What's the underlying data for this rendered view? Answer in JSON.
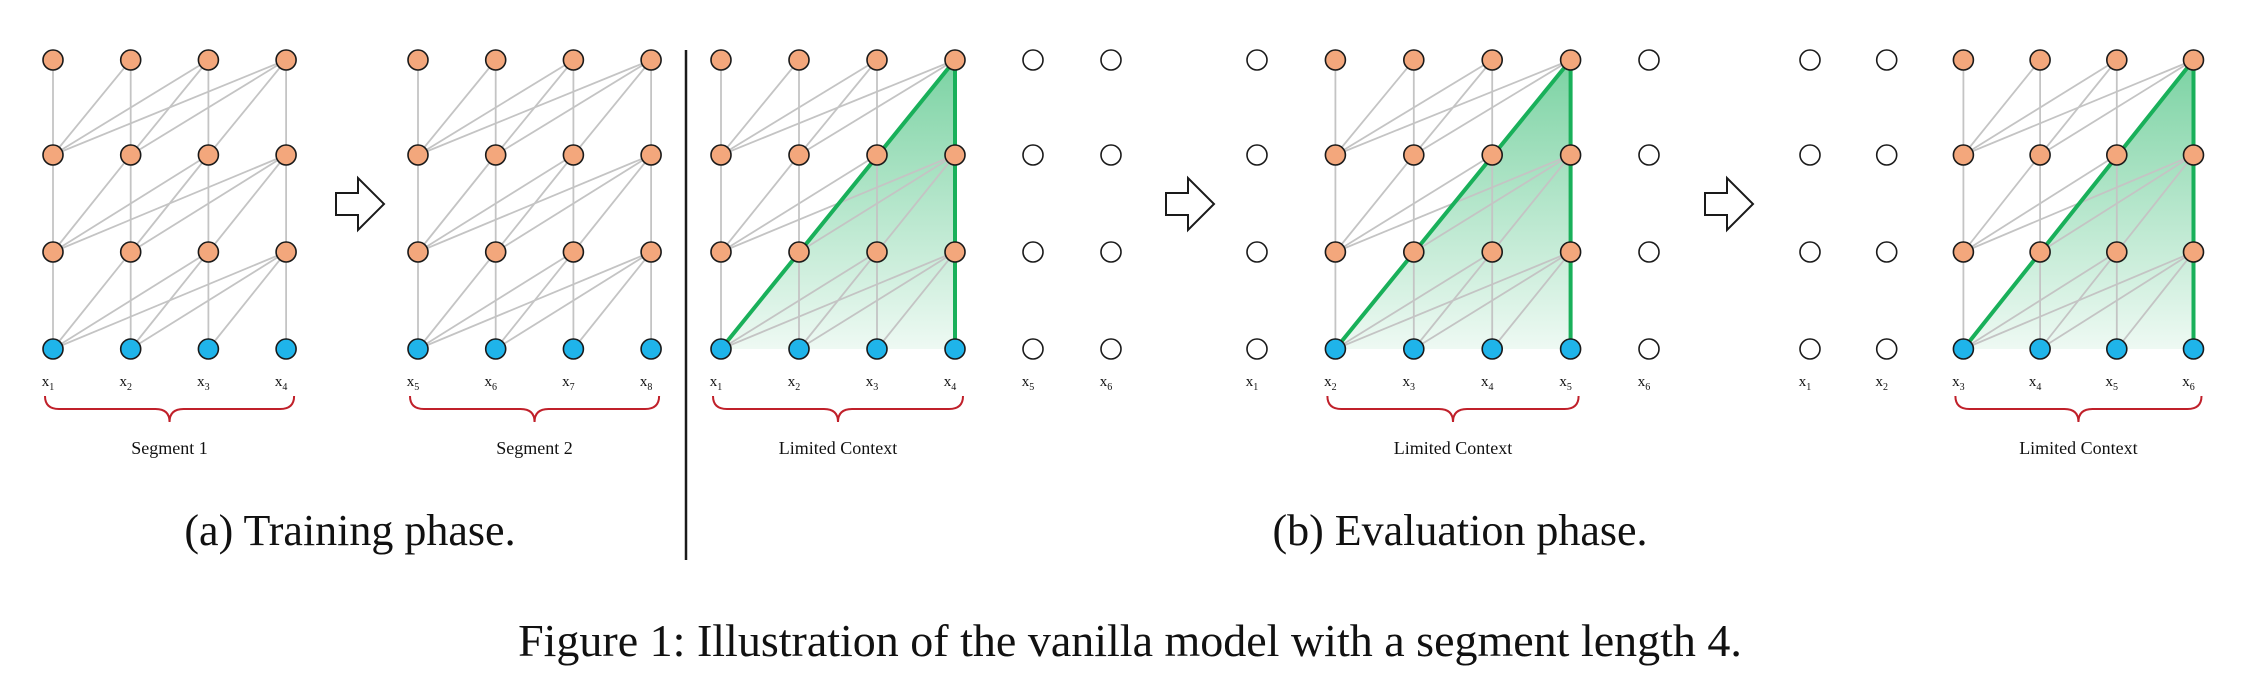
{
  "colors": {
    "hidden_node": "#f3a77c",
    "input_node": "#1fb4ea",
    "empty_node": "#ffffff",
    "node_stroke": "#1a1a1a",
    "edge": "#c4c4c4",
    "context_edge": "#19b05a",
    "context_fill": "#2ab76a",
    "brace": "#c0202a",
    "arrow_stroke": "#1a1a1a"
  },
  "panels": [
    {
      "id": "train-seg1",
      "tokens": [
        [
          "x",
          "1"
        ],
        [
          "x",
          "2"
        ],
        [
          "x",
          "3"
        ],
        [
          "x",
          "4"
        ]
      ],
      "active": [
        0,
        1,
        2,
        3
      ],
      "context": null,
      "brace_label": "Segment 1"
    },
    {
      "id": "train-seg2",
      "tokens": [
        [
          "x",
          "5"
        ],
        [
          "x",
          "6"
        ],
        [
          "x",
          "7"
        ],
        [
          "x",
          "8"
        ]
      ],
      "active": [
        0,
        1,
        2,
        3
      ],
      "context": null,
      "brace_label": "Segment 2"
    },
    {
      "id": "eval-step1",
      "tokens": [
        [
          "x",
          "1"
        ],
        [
          "x",
          "2"
        ],
        [
          "x",
          "3"
        ],
        [
          "x",
          "4"
        ],
        [
          "x",
          "5"
        ],
        [
          "x",
          "6"
        ]
      ],
      "active": [
        0,
        1,
        2,
        3
      ],
      "context": [
        0,
        3
      ],
      "brace_label": "Limited Context"
    },
    {
      "id": "eval-step2",
      "tokens": [
        [
          "x",
          "1"
        ],
        [
          "x",
          "2"
        ],
        [
          "x",
          "3"
        ],
        [
          "x",
          "4"
        ],
        [
          "x",
          "5"
        ],
        [
          "x",
          "6"
        ]
      ],
      "active": [
        1,
        2,
        3,
        4
      ],
      "context": [
        1,
        4
      ],
      "brace_label": "Limited Context"
    },
    {
      "id": "eval-step3",
      "tokens": [
        [
          "x",
          "1"
        ],
        [
          "x",
          "2"
        ],
        [
          "x",
          "3"
        ],
        [
          "x",
          "4"
        ],
        [
          "x",
          "5"
        ],
        [
          "x",
          "6"
        ]
      ],
      "active": [
        2,
        3,
        4,
        5
      ],
      "context": [
        2,
        5
      ],
      "brace_label": "Limited Context"
    }
  ],
  "phase_captions": {
    "training": "(a) Training phase.",
    "evaluation": "(b) Evaluation phase."
  },
  "figure_caption": "Figure 1: Illustration of the vanilla model with a segment length 4."
}
